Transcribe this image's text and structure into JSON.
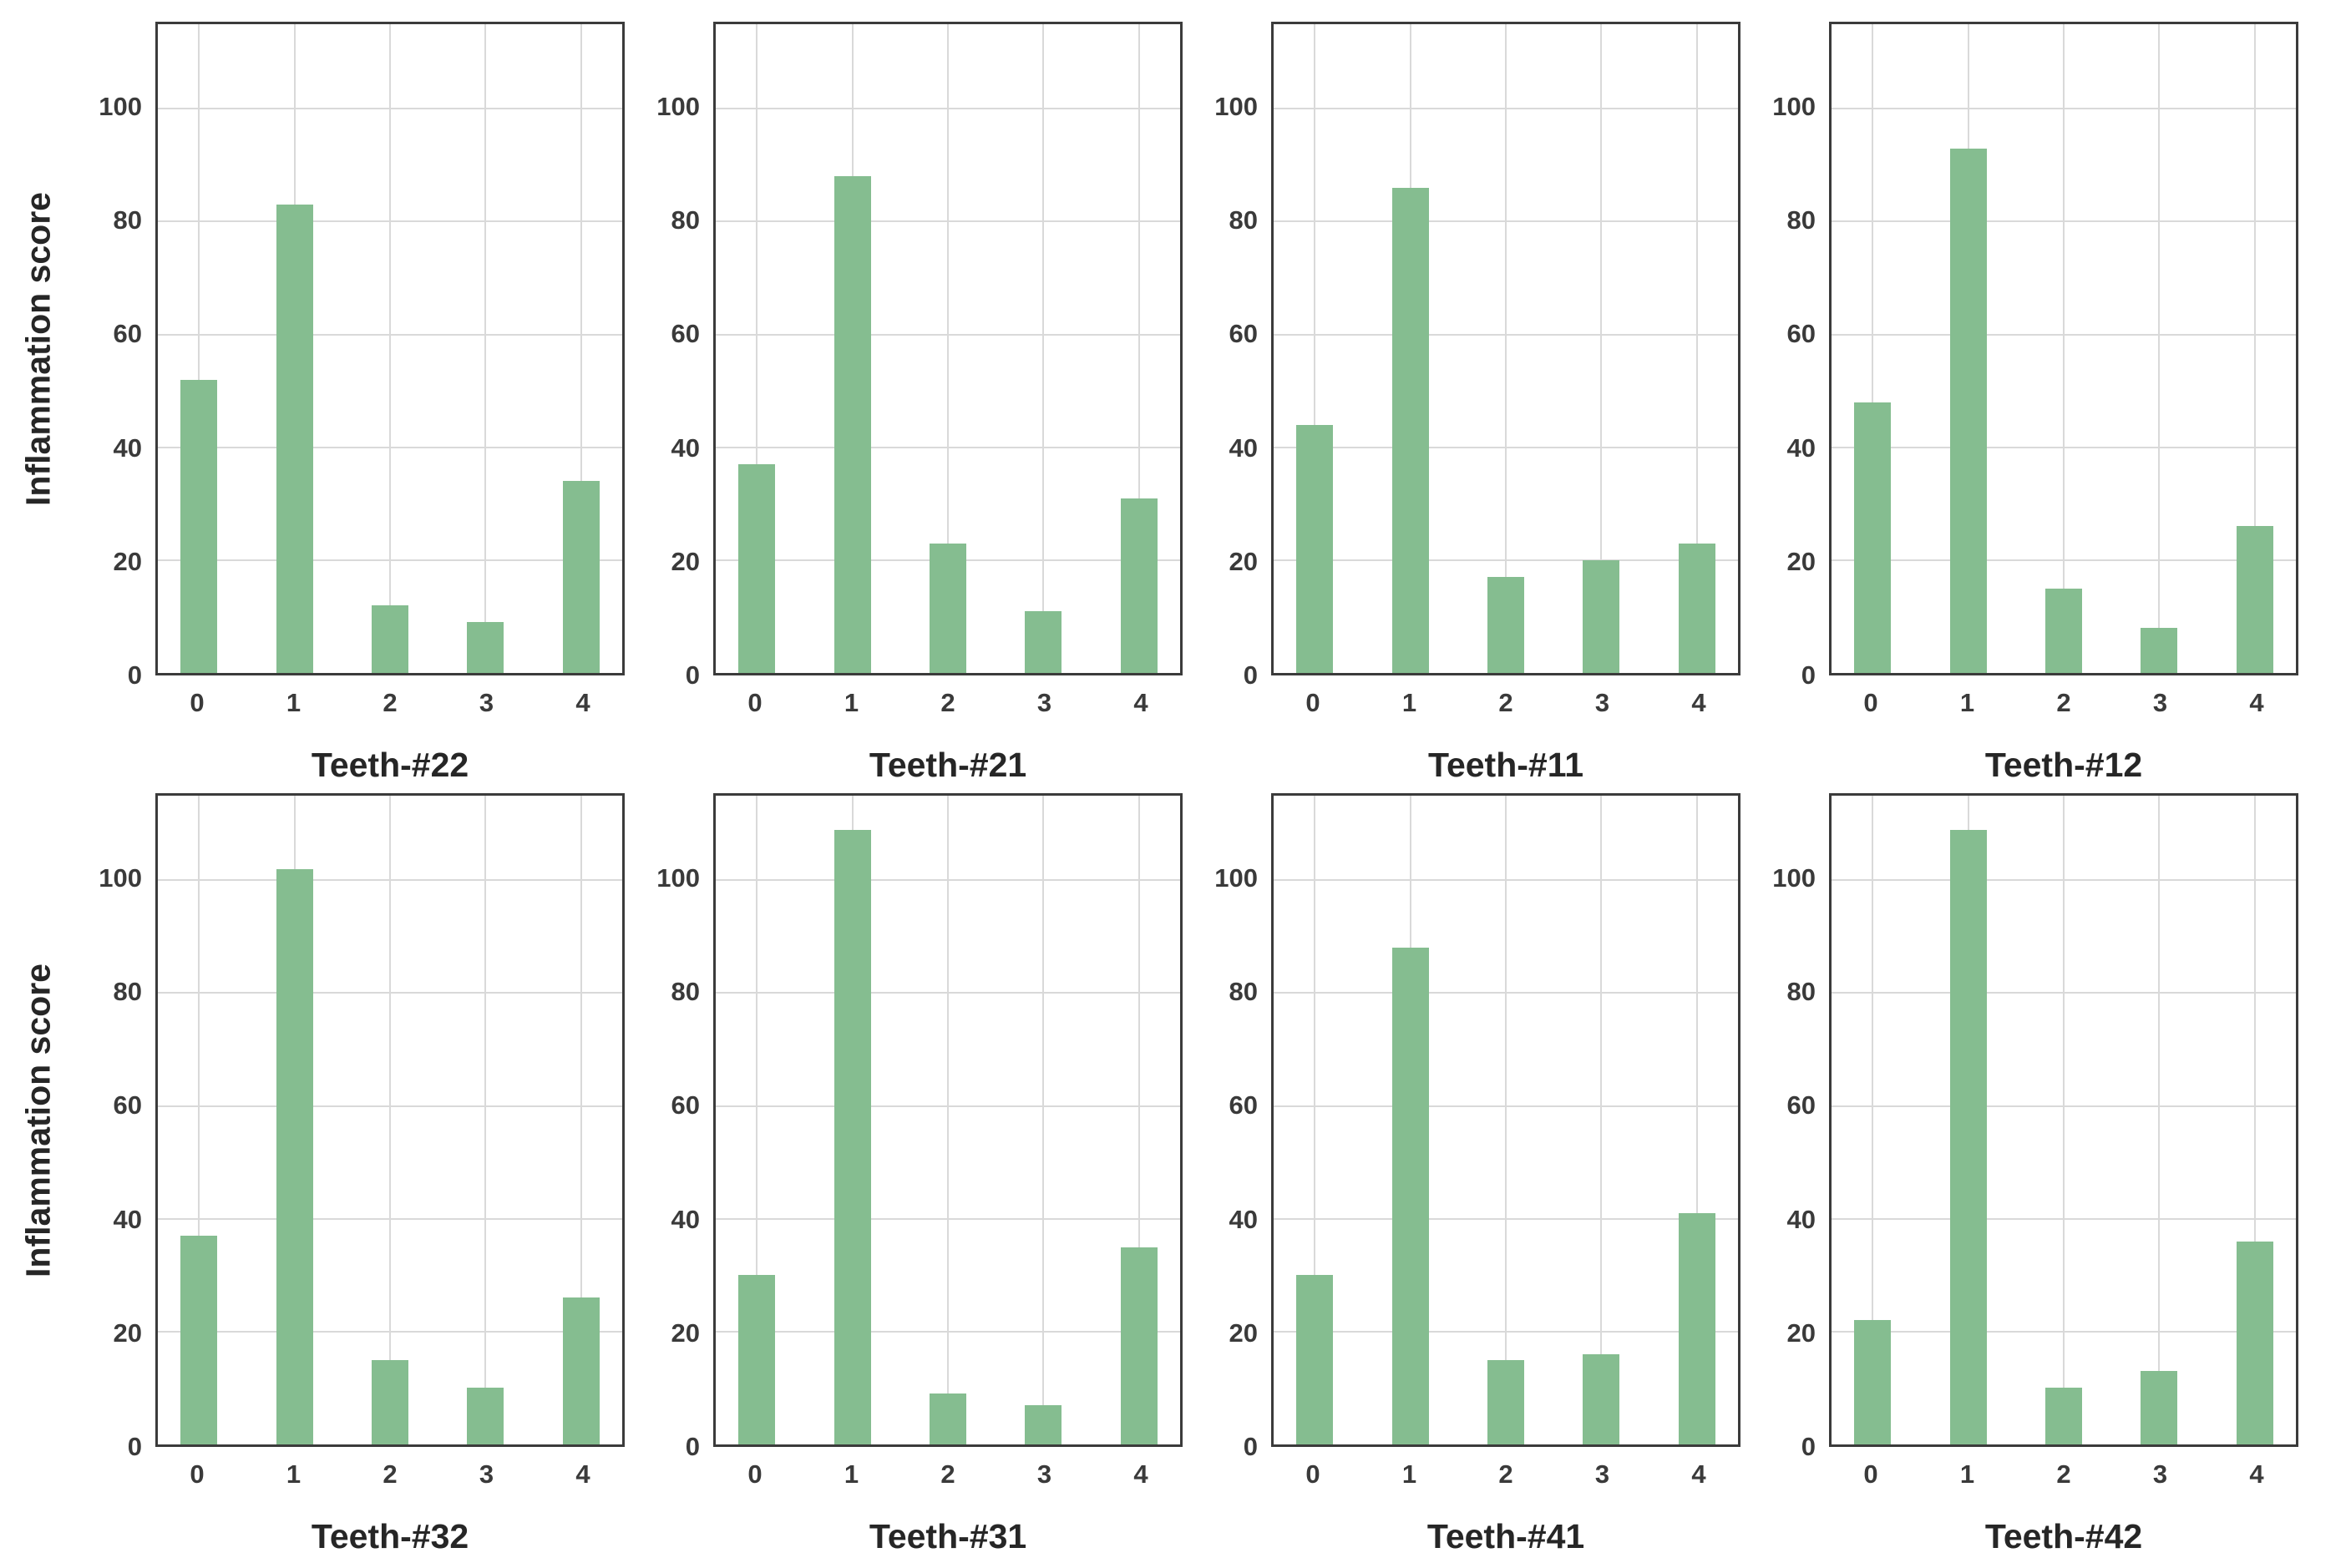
{
  "figure": {
    "background": "#ffffff",
    "ylabel": "Inflammation score"
  },
  "chart_data": {
    "type": "bar",
    "grid": true,
    "categories": [
      "0",
      "1",
      "2",
      "3",
      "4"
    ],
    "ylabel": "Inflammation score",
    "yticks": [
      0,
      20,
      40,
      60,
      80,
      100
    ],
    "ylim": [
      0,
      115
    ],
    "layout": "2 rows x 4 columns, y-axis label on leftmost subplot of each row",
    "style": {
      "bar_color": "#85bd90",
      "axis_color": "#3b3b3b",
      "grid_color": "#d9d9d9",
      "tick_color": "#3a3a3a",
      "title_color": "#262626"
    },
    "charts": [
      {
        "title": "Teeth-#22",
        "values": [
          52,
          83,
          12,
          9,
          34
        ]
      },
      {
        "title": "Teeth-#21",
        "values": [
          37,
          88,
          23,
          11,
          31
        ]
      },
      {
        "title": "Teeth-#11",
        "values": [
          44,
          86,
          17,
          20,
          23
        ]
      },
      {
        "title": "Teeth-#12",
        "values": [
          48,
          93,
          15,
          8,
          26
        ]
      },
      {
        "title": "Teeth-#32",
        "values": [
          37,
          102,
          15,
          10,
          26
        ]
      },
      {
        "title": "Teeth-#31",
        "values": [
          30,
          109,
          9,
          7,
          35
        ]
      },
      {
        "title": "Teeth-#41",
        "values": [
          30,
          88,
          15,
          16,
          41
        ]
      },
      {
        "title": "Teeth-#42",
        "values": [
          22,
          109,
          10,
          13,
          36
        ]
      }
    ]
  }
}
